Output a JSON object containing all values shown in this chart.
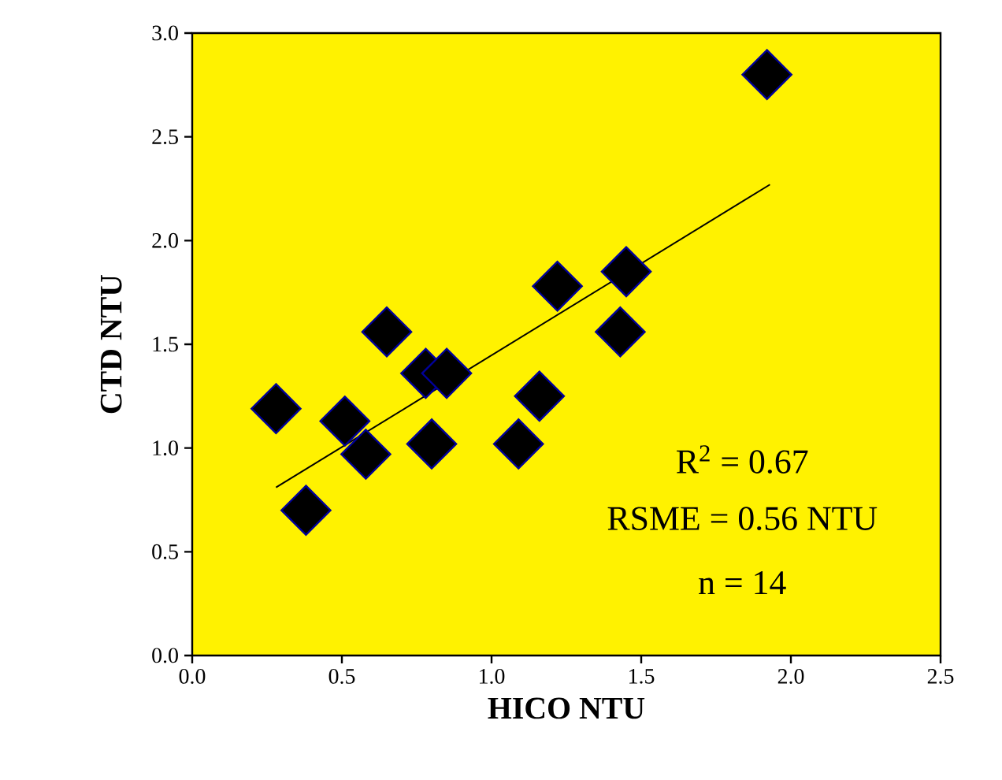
{
  "chart_data": {
    "type": "scatter",
    "xlabel": "HICO NTU",
    "ylabel": "CTD NTU",
    "xlim": [
      0,
      2.5
    ],
    "ylim": [
      0,
      3.0
    ],
    "xticks": [
      {
        "value": 0,
        "label": "0.0"
      },
      {
        "value": 0.5,
        "label": "0.5"
      },
      {
        "value": 1.0,
        "label": "1.0"
      },
      {
        "value": 1.5,
        "label": "1.5"
      },
      {
        "value": 2.0,
        "label": "2.0"
      },
      {
        "value": 2.5,
        "label": "2.5"
      }
    ],
    "yticks": [
      {
        "value": 0,
        "label": "0.0"
      },
      {
        "value": 0.5,
        "label": "0.5"
      },
      {
        "value": 1.0,
        "label": "1.0"
      },
      {
        "value": 1.5,
        "label": "1.5"
      },
      {
        "value": 2.0,
        "label": "2.0"
      },
      {
        "value": 2.5,
        "label": "2.5"
      },
      {
        "value": 3.0,
        "label": "3.0"
      }
    ],
    "grid": false,
    "series": [
      {
        "marker": "diamond",
        "color": "#000000",
        "x": [
          0.28,
          0.38,
          0.51,
          0.58,
          0.65,
          0.78,
          0.85,
          0.8,
          1.09,
          1.16,
          1.22,
          1.45,
          1.43,
          1.92
        ],
        "values": [
          1.19,
          0.7,
          1.13,
          0.97,
          1.56,
          1.36,
          1.36,
          1.02,
          1.02,
          1.25,
          1.78,
          1.85,
          1.56,
          2.8
        ]
      },
      {
        "type": "line",
        "marker": "none",
        "color": "#000000",
        "x": [
          0.28,
          1.93
        ],
        "values": [
          0.81,
          2.27
        ]
      }
    ],
    "annotations": [
      "R$^{2}$ = 0.67",
      "RSME = 0.56 NTU",
      "n = 14"
    ]
  }
}
